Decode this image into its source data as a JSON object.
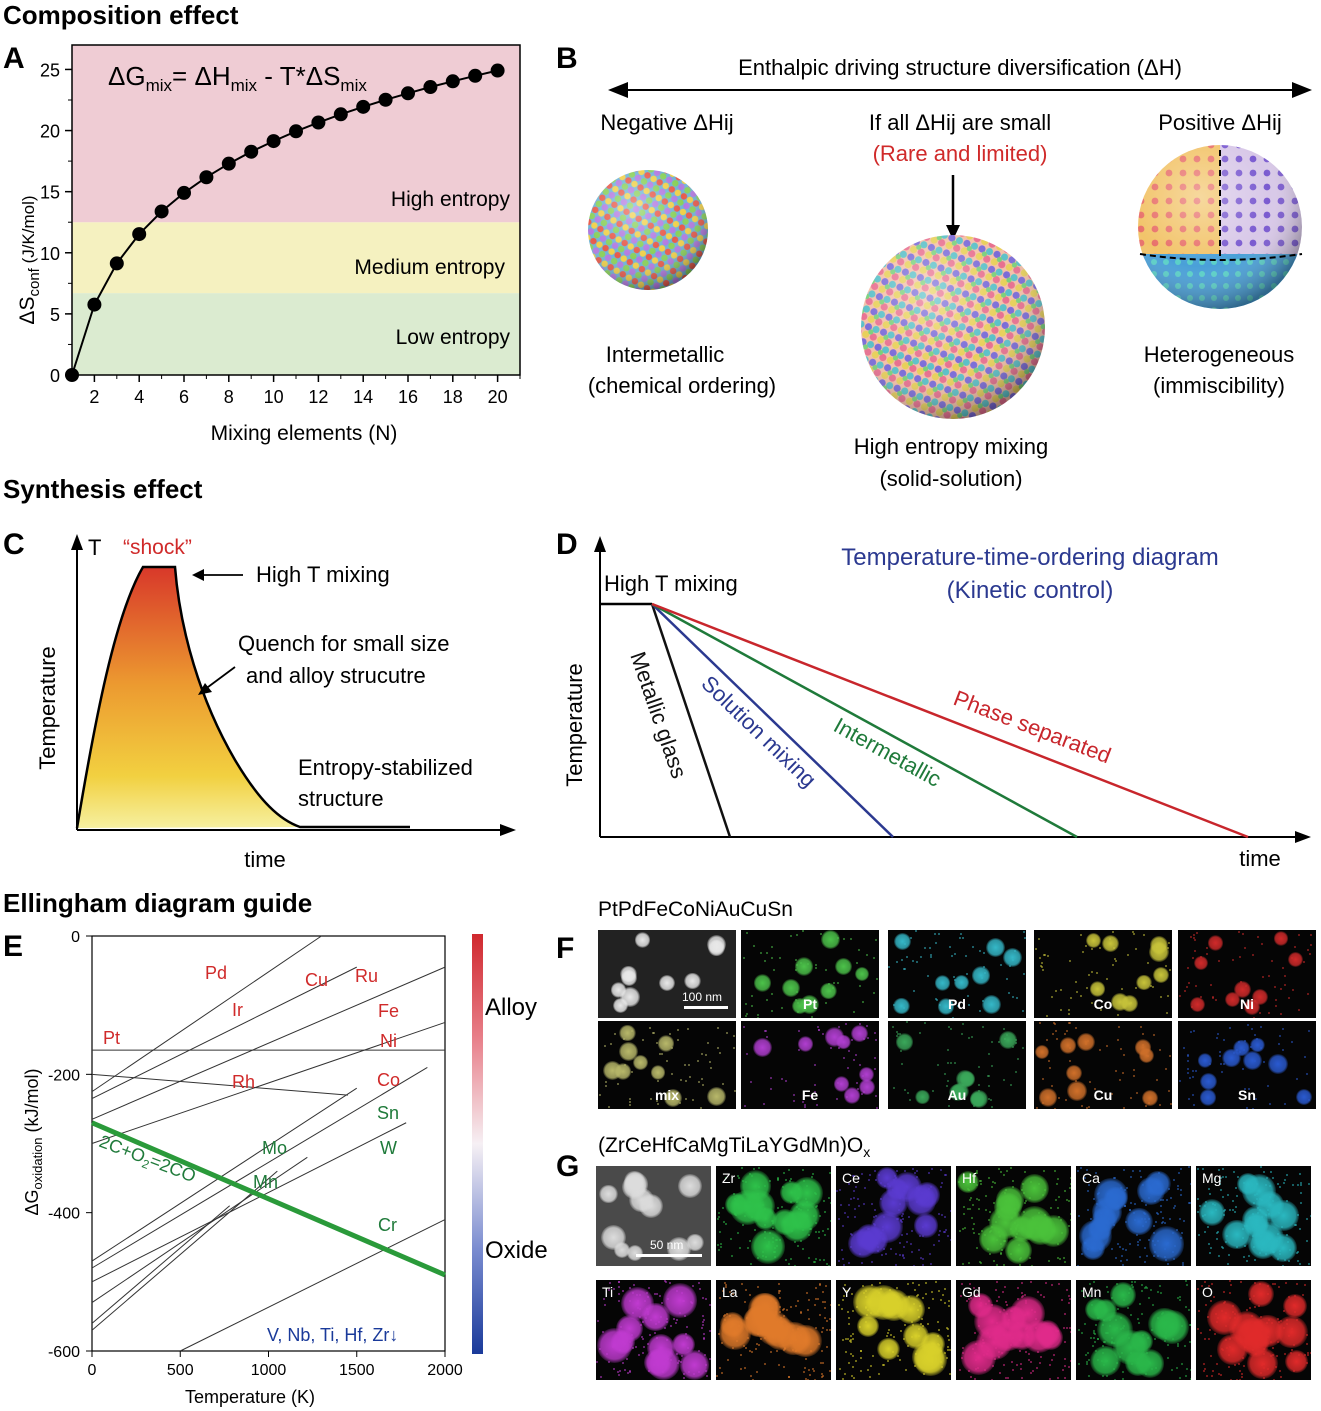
{
  "sections": {
    "composition": "Composition effect",
    "synthesis": "Synthesis effect",
    "ellingham": "Ellingham diagram guide"
  },
  "panel_labels": [
    "A",
    "B",
    "C",
    "D",
    "E",
    "F",
    "G"
  ],
  "panelA": {
    "equation": "ΔG",
    "eq_mix1": "mix",
    "eq_mid": "= ΔH",
    "eq_mix2": "mix",
    "eq_end": " - T*ΔS",
    "eq_mix3": "mix",
    "band_labels": [
      "High entropy",
      "Medium entropy",
      "Low entropy"
    ],
    "ylabel_main": "ΔS",
    "ylabel_sub": "conf",
    "ylabel_unit": " (J/K/mol)",
    "xlabel": "Mixing elements (N)",
    "colors": {
      "high": "#efccd4",
      "medium": "#f5f1c0",
      "low": "#dbebd0"
    }
  },
  "panelB": {
    "arrow_title": "Enthalpic driving structure diversification (ΔH)",
    "left_head": "Negative ΔHij",
    "mid_head": "If all ΔHij are small",
    "mid_note": "(Rare and limited)",
    "right_head": "Positive ΔHij",
    "left_cap1": "Intermetallic",
    "left_cap2": "(chemical ordering)",
    "mid_cap1": "High entropy mixing",
    "mid_cap2": "(solid-solution)",
    "right_cap1": "Heterogeneous",
    "right_cap2": "(immiscibility)"
  },
  "panelC": {
    "T": "T",
    "shock": "“shock”",
    "high_t": "High T mixing",
    "quench1": "Quench for small size",
    "quench2": "and alloy strucutre",
    "entropy1": "Entropy-stabilized",
    "entropy2": "structure",
    "ylabel": "Temperature",
    "xlabel": "time"
  },
  "panelD": {
    "title1": "Temperature-time-ordering diagram",
    "title2": "(Kinetic control)",
    "high_t": "High T mixing",
    "ylabel": "Temperature",
    "xlabel": "time",
    "lines": [
      {
        "label": "Metallic glass",
        "color": "#111111"
      },
      {
        "label": "Solution mixing",
        "color": "#2b3990"
      },
      {
        "label": "Intermetallic",
        "color": "#1f7a3a"
      },
      {
        "label": "Phase separated",
        "color": "#c8262c"
      }
    ]
  },
  "panelE": {
    "elements_red": [
      "Pd",
      "Cu",
      "Ru",
      "Ir",
      "Fe",
      "Pt",
      "Ni",
      "Rh",
      "Co"
    ],
    "elements_green": [
      "Sn",
      "Mo",
      "W",
      "Mn",
      "Cr"
    ],
    "reaction": "2C+O",
    "reaction_sub": "2",
    "reaction_end": "=2CO",
    "bottom_note": "V, Nb, Ti, Hf, Zr↓",
    "ylabel_main": "ΔG",
    "ylabel_sub": "oxidation",
    "ylabel_unit": " (kJ/mol)",
    "xlabel": "Temperature (K)",
    "colorbar_top": "Alloy",
    "colorbar_bottom": "Oxide"
  },
  "panelF": {
    "title": "PtPdFeCoNiAuCuSn",
    "scale": "100 nm",
    "tiles": [
      "Pt",
      "Pd",
      "Co",
      "Ni",
      "mix",
      "Fe",
      "Au",
      "Cu",
      "Sn"
    ],
    "colors": [
      "#4cc24a",
      "#35b8c8",
      "#c8c43a",
      "#d02a2a",
      "#b8b86a",
      "#b03ed0",
      "#3aa85a",
      "#d0702a",
      "#2a5ad0"
    ]
  },
  "panelG": {
    "title": "(ZrCeHfCaMgTiLaYGdMn)O",
    "title_sub": "x",
    "scale": "50 nm",
    "tiles": [
      "Zr",
      "Ce",
      "Hf",
      "Ca",
      "Mg",
      "Ti",
      "La",
      "Y",
      "Gd",
      "Mn",
      "O"
    ],
    "colors": [
      "#2ec24a",
      "#5a3ad0",
      "#4ac23a",
      "#2a6ad0",
      "#2ab8c0",
      "#c03ad0",
      "#e07a2a",
      "#d8d02a",
      "#e02a8a",
      "#2ab84a",
      "#e02a2a"
    ]
  },
  "chart_data": [
    {
      "type": "line",
      "panel": "A",
      "xlabel": "Mixing elements (N)",
      "ylabel": "ΔS conf (J/K/mol)",
      "xlim": [
        1,
        21
      ],
      "ylim": [
        0,
        27
      ],
      "xticks": [
        2,
        4,
        6,
        8,
        10,
        12,
        14,
        16,
        18,
        20
      ],
      "yticks": [
        0,
        5,
        10,
        15,
        20,
        25
      ],
      "x": [
        1,
        2,
        3,
        4,
        5,
        6,
        7,
        8,
        9,
        10,
        11,
        12,
        13,
        14,
        15,
        16,
        17,
        18,
        19,
        20
      ],
      "y": [
        0,
        5.76,
        9.13,
        11.53,
        13.38,
        14.9,
        16.18,
        17.29,
        18.27,
        19.14,
        19.94,
        20.66,
        21.33,
        21.94,
        22.52,
        23.05,
        23.56,
        24.03,
        24.48,
        24.91
      ],
      "bands": [
        {
          "label": "Low entropy",
          "range": [
            0,
            6.7
          ]
        },
        {
          "label": "Medium entropy",
          "range": [
            6.7,
            12.5
          ]
        },
        {
          "label": "High entropy",
          "range": [
            12.5,
            27
          ]
        }
      ]
    },
    {
      "type": "line",
      "panel": "E",
      "xlabel": "Temperature (K)",
      "ylabel": "ΔG oxidation (kJ/mol)",
      "xlim": [
        0,
        2000
      ],
      "ylim": [
        -600,
        0
      ],
      "xticks": [
        0,
        500,
        1000,
        1500,
        2000
      ],
      "xtick_labels": [
        "0",
        "500",
        "1000",
        "1500",
        "2000"
      ],
      "yticks": [
        0,
        -200,
        -400,
        -600
      ],
      "ytick_labels": [
        "0",
        "-200",
        "-400",
        "-600"
      ],
      "lines": [
        {
          "x": [
            0,
            2000
          ],
          "y": [
            -165,
            -165
          ]
        },
        {
          "x": [
            0,
            1300
          ],
          "y": [
            -225,
            0
          ]
        },
        {
          "x": [
            0,
            1500
          ],
          "y": [
            -235,
            -45
          ]
        },
        {
          "x": [
            0,
            2000
          ],
          "y": [
            -265,
            -45
          ]
        },
        {
          "x": [
            0,
            1450
          ],
          "y": [
            -200,
            -230
          ]
        },
        {
          "x": [
            0,
            2000
          ],
          "y": [
            -300,
            -125
          ]
        },
        {
          "x": [
            0,
            1900
          ],
          "y": [
            -480,
            -190
          ]
        },
        {
          "x": [
            0,
            1780
          ],
          "y": [
            -500,
            -270
          ]
        },
        {
          "x": [
            0,
            1500
          ],
          "y": [
            -470,
            -220
          ]
        },
        {
          "x": [
            0,
            1220
          ],
          "y": [
            -530,
            -320
          ]
        },
        {
          "x": [
            0,
            1050
          ],
          "y": [
            -570,
            -340
          ]
        },
        {
          "x": [
            0,
            780
          ],
          "y": [
            -560,
            -390
          ]
        },
        {
          "x": [
            500,
            2000
          ],
          "y": [
            -600,
            -410
          ]
        },
        {
          "x": [
            0,
            2000
          ],
          "y": [
            -270,
            -490
          ],
          "name": "2C+O2=2CO"
        }
      ]
    }
  ]
}
